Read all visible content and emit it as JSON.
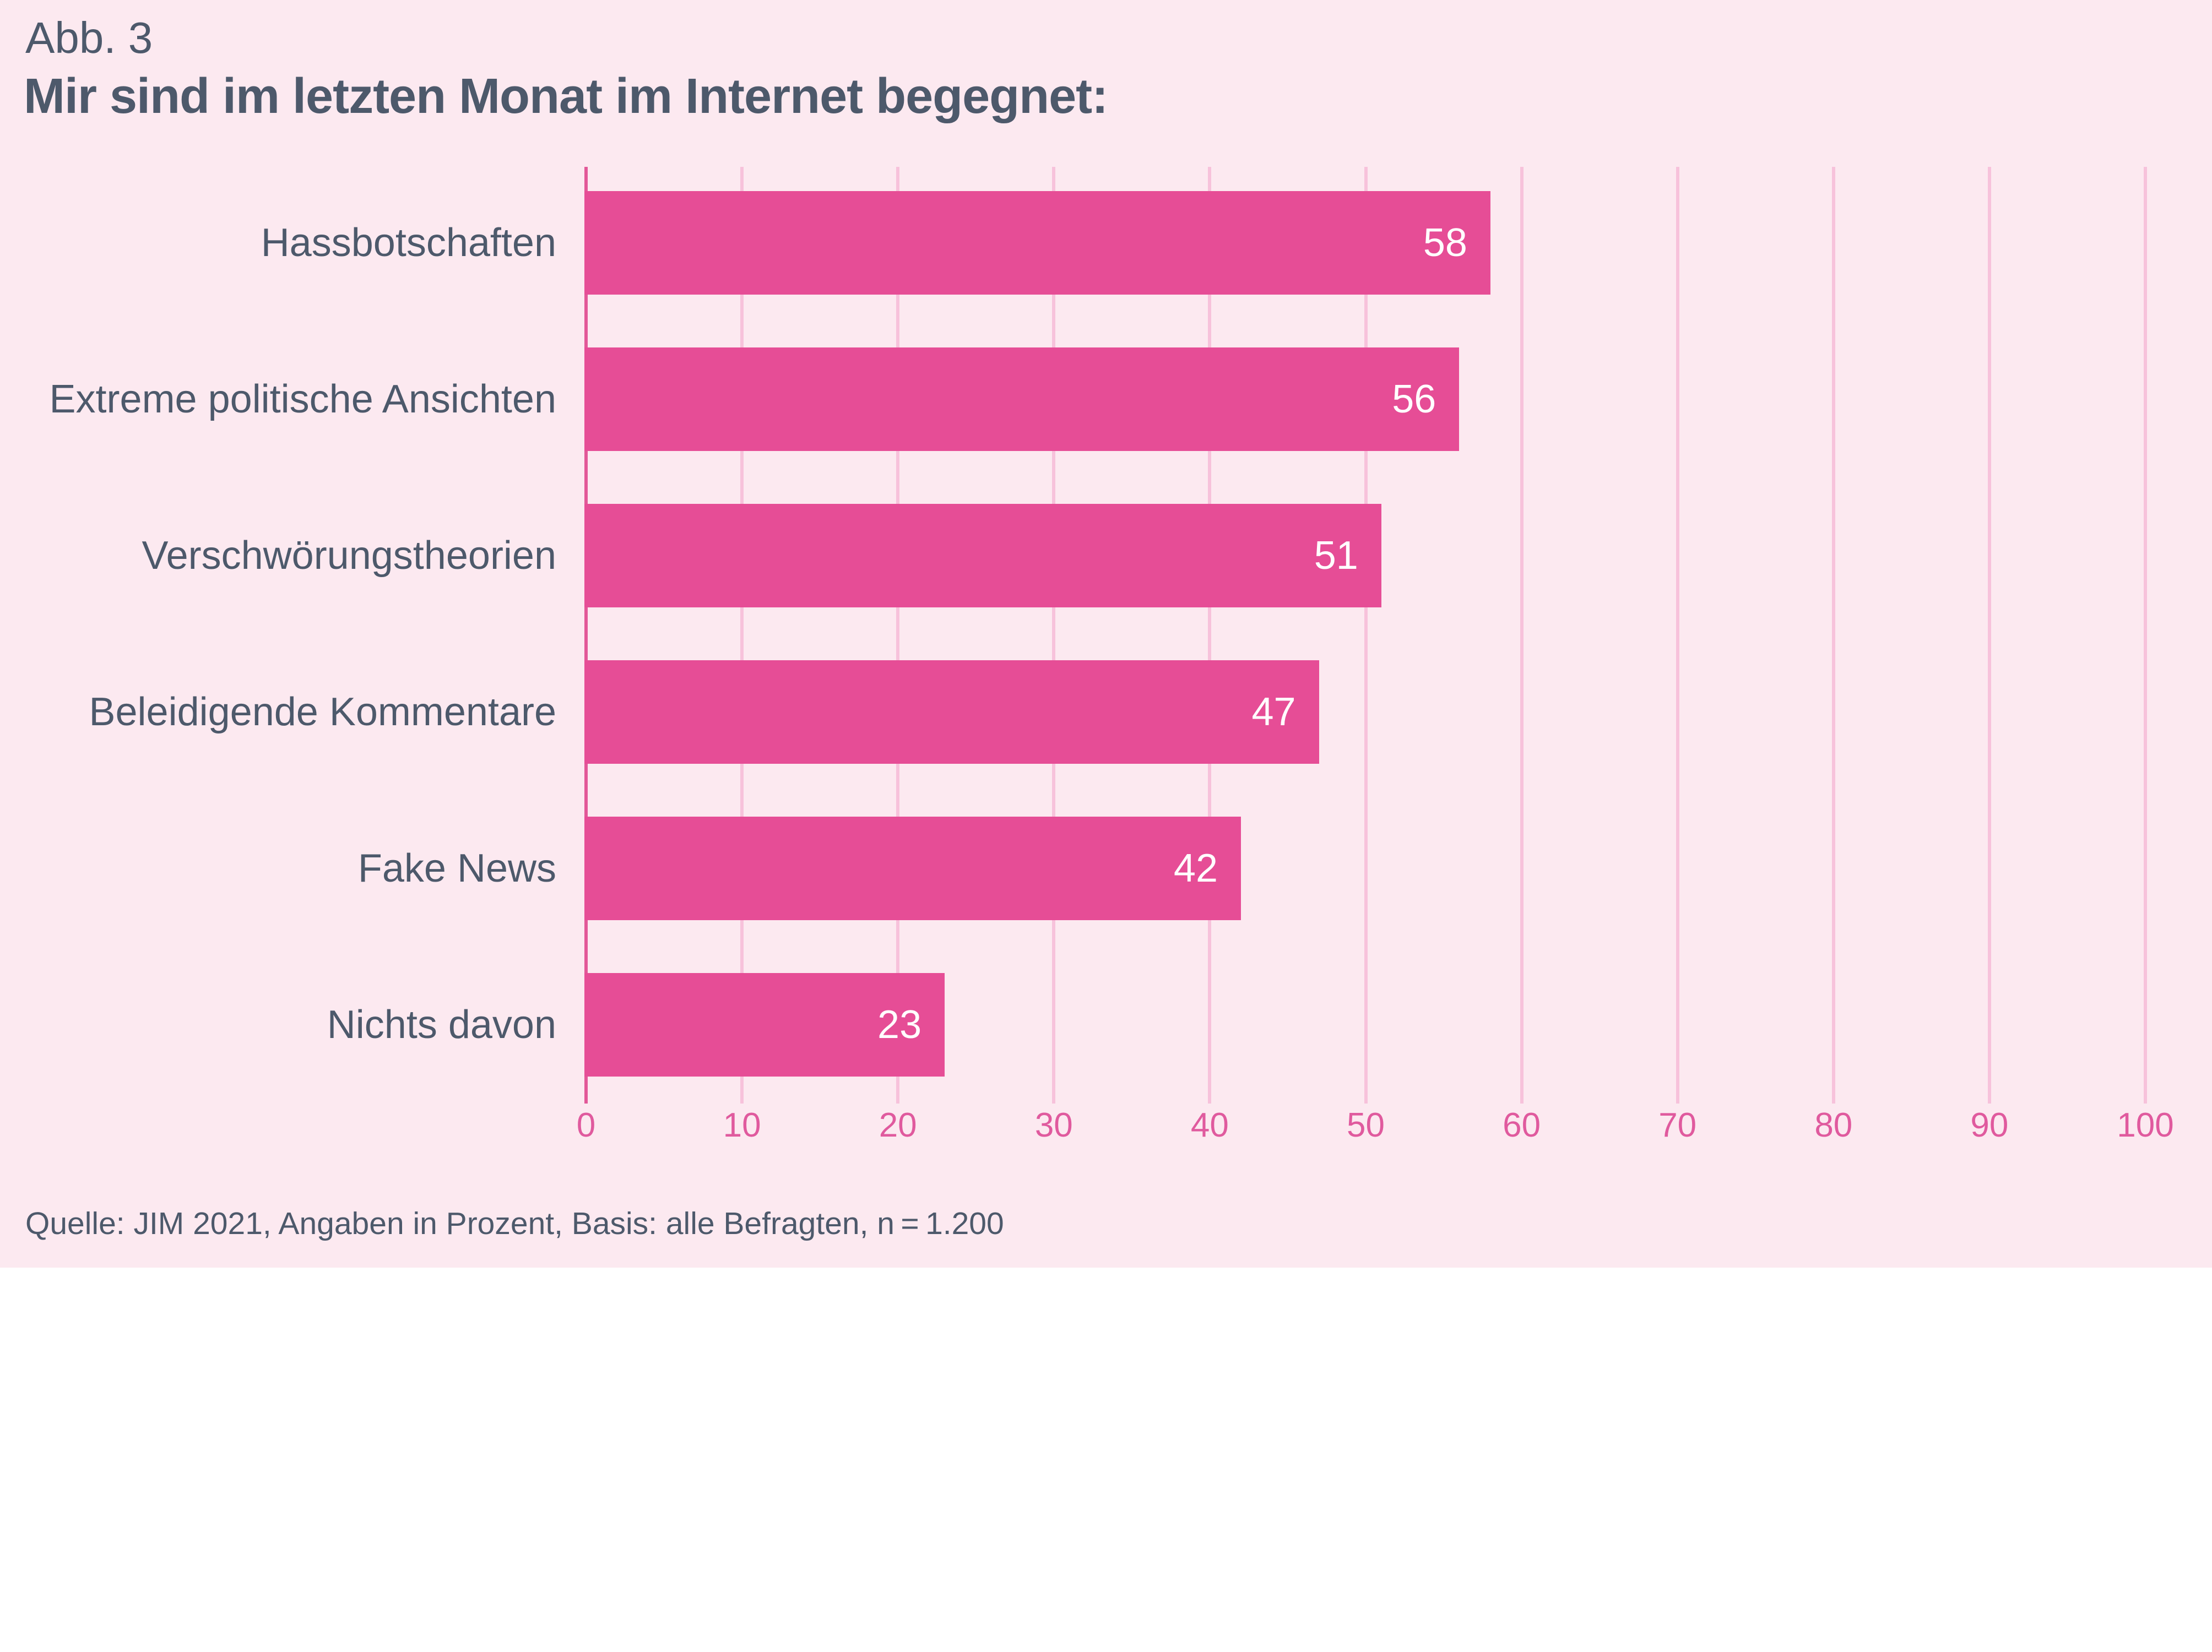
{
  "header": {
    "figure_label": "Abb. 3",
    "title": "Mir sind im letzten Monat im Internet begegnet:"
  },
  "chart_data": {
    "type": "bar",
    "orientation": "horizontal",
    "title": "Mir sind im letzten Monat im Internet begegnet:",
    "categories": [
      "Hassbotschaften",
      "Extreme politische Ansichten",
      "Verschwörungstheorien",
      "Beleidigende Kommentare",
      "Fake News",
      "Nichts davon"
    ],
    "values": [
      58,
      56,
      51,
      47,
      42,
      23
    ],
    "xlabel": "",
    "ylabel": "",
    "xlim": [
      0,
      100
    ],
    "axis_ticks": [
      0,
      10,
      20,
      30,
      40,
      50,
      60,
      70,
      80,
      90,
      100
    ],
    "grid": true,
    "legend": false,
    "value_labels_position": "inside-end",
    "unit": "Prozent",
    "colors": {
      "background": "#fce9f0",
      "bar": "#e64d96",
      "gridline": "#f7c2db",
      "zero_line": "#e25898",
      "axis_label": "#e05a9e",
      "text": "#4d596b",
      "value_label": "#ffffff"
    }
  },
  "footer": {
    "source": "Quelle: JIM 2021, Angaben in Prozent, Basis: alle Befragten, n = 1.200"
  }
}
